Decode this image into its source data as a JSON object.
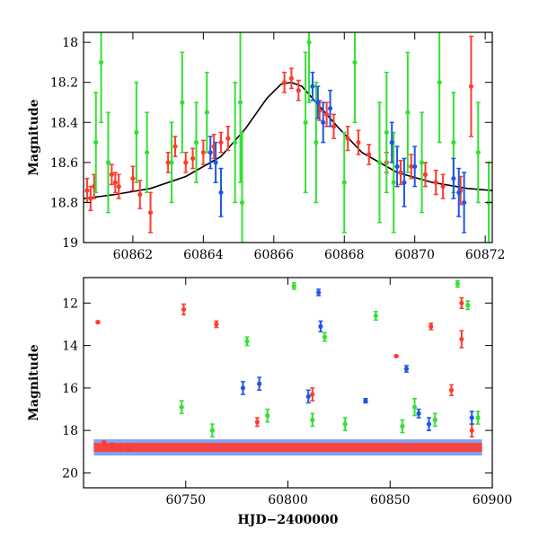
{
  "colors": {
    "red": "#ff3b2f",
    "green": "#33e033",
    "blue": "#1f56e6",
    "model": "#000000"
  },
  "chart_data": [
    {
      "type": "scatter",
      "title": "",
      "xlabel": "",
      "ylabel": "Magnitude",
      "xlim": [
        60860.6,
        60872.2
      ],
      "ylim": [
        19.0,
        17.95
      ],
      "y_inverted": true,
      "xticks": [
        60862,
        60864,
        60866,
        60868,
        60870,
        60872
      ],
      "xtick_labels": [
        "60862",
        "60864",
        "60866",
        "60868",
        "60870",
        "60872"
      ],
      "yticks": [
        18.0,
        18.2,
        18.4,
        18.6,
        18.8,
        19.0
      ],
      "ytick_labels": [
        "18",
        "18.2",
        "18.4",
        "18.6",
        "18.8",
        "19"
      ],
      "model_curve": {
        "color": "#000000",
        "x": [
          60860.6,
          60861.5,
          60862.5,
          60863.5,
          60864.5,
          60865.2,
          60865.8,
          60866.2,
          60866.5,
          60866.8,
          60867.2,
          60867.8,
          60868.5,
          60869.5,
          60870.5,
          60871.5,
          60872.2
        ],
        "y": [
          18.78,
          18.76,
          18.73,
          18.67,
          18.57,
          18.43,
          18.28,
          18.21,
          18.2,
          18.22,
          18.3,
          18.42,
          18.55,
          18.65,
          18.7,
          18.73,
          18.74
        ]
      },
      "series": [
        {
          "color": "#ff3b2f",
          "x": [
            60860.7,
            60860.8,
            60860.9,
            60861.4,
            60861.5,
            60861.6,
            60862.0,
            60862.2,
            60862.5,
            60863.0,
            60863.2,
            60863.5,
            60863.7,
            60864.0,
            60864.3,
            60864.5,
            60864.7,
            60866.3,
            60866.5,
            60866.7,
            60867.3,
            60867.5,
            60867.7,
            60868.1,
            60868.4,
            60868.7,
            60869.2,
            60869.6,
            60869.9,
            60870.3,
            60870.6,
            60870.8,
            60871.3,
            60871.6
          ],
          "y": [
            18.74,
            18.78,
            18.72,
            18.66,
            18.7,
            18.72,
            18.68,
            18.76,
            18.85,
            18.6,
            18.52,
            18.6,
            18.58,
            18.55,
            18.52,
            18.5,
            18.48,
            18.2,
            18.18,
            18.24,
            18.34,
            18.36,
            18.42,
            18.48,
            18.5,
            18.56,
            18.6,
            18.65,
            18.62,
            18.66,
            18.7,
            18.72,
            18.74,
            18.22
          ],
          "err": [
            0.06,
            0.06,
            0.06,
            0.05,
            0.05,
            0.06,
            0.06,
            0.07,
            0.1,
            0.05,
            0.05,
            0.05,
            0.05,
            0.06,
            0.06,
            0.05,
            0.06,
            0.05,
            0.05,
            0.05,
            0.05,
            0.06,
            0.06,
            0.06,
            0.06,
            0.05,
            0.05,
            0.06,
            0.06,
            0.06,
            0.06,
            0.06,
            0.07,
            0.25
          ]
        },
        {
          "color": "#33e033",
          "x": [
            60860.95,
            60861.1,
            60861.3,
            60862.1,
            60862.4,
            60863.1,
            60863.4,
            60863.8,
            60864.1,
            60864.9,
            60865.05,
            60865.1,
            60866.9,
            60867.0,
            60867.2,
            60868.0,
            60868.3,
            60869.0,
            60869.2,
            60869.4,
            60869.8,
            60870.2,
            60870.7,
            60871.1,
            60871.8,
            60872.1
          ],
          "y": [
            18.5,
            18.1,
            18.6,
            18.45,
            18.55,
            18.6,
            18.3,
            18.5,
            18.35,
            18.5,
            18.3,
            18.8,
            18.4,
            18.0,
            18.5,
            18.7,
            18.1,
            18.6,
            18.45,
            18.7,
            18.35,
            18.6,
            18.2,
            18.5,
            18.55,
            18.8
          ],
          "err": [
            0.25,
            0.3,
            0.25,
            0.25,
            0.2,
            0.2,
            0.25,
            0.2,
            0.2,
            0.3,
            0.4,
            0.35,
            0.35,
            0.3,
            0.3,
            0.25,
            0.3,
            0.3,
            0.3,
            0.25,
            0.3,
            0.25,
            0.3,
            0.25,
            0.25,
            0.2
          ]
        },
        {
          "color": "#1f56e6",
          "x": [
            60864.2,
            60864.35,
            60864.5,
            60867.1,
            60867.25,
            60867.4,
            60867.6,
            60869.35,
            60869.5,
            60869.7,
            60870.0,
            60871.1,
            60871.25,
            60871.4
          ],
          "y": [
            18.55,
            18.6,
            18.75,
            18.22,
            18.3,
            18.4,
            18.33,
            18.5,
            18.62,
            18.7,
            18.62,
            18.68,
            18.75,
            18.8
          ],
          "err": [
            0.08,
            0.1,
            0.12,
            0.07,
            0.08,
            0.1,
            0.09,
            0.1,
            0.1,
            0.12,
            0.1,
            0.1,
            0.12,
            0.15
          ]
        }
      ]
    },
    {
      "type": "scatter",
      "title": "",
      "xlabel": "HJD−2400000",
      "ylabel": "Magnitude",
      "xlim": [
        60700,
        60900
      ],
      "ylim": [
        20.7,
        10.8
      ],
      "y_inverted": true,
      "xticks": [
        60750,
        60800,
        60850,
        60900
      ],
      "xtick_labels": [
        "60750",
        "60800",
        "60850",
        "60900"
      ],
      "yticks": [
        12,
        14,
        16,
        18,
        20
      ],
      "ytick_labels": [
        "12",
        "14",
        "16",
        "18",
        "20"
      ],
      "baseline": {
        "color": "#ff3b2f",
        "x_range": [
          60705,
          60895
        ],
        "y": 18.8
      },
      "series": [
        {
          "color": "#ff3b2f",
          "x": [
            60707,
            60710,
            60714,
            60718,
            60722,
            60749,
            60765,
            60785,
            60812,
            60853,
            60870,
            60880,
            60885,
            60885,
            60890
          ],
          "y": [
            12.9,
            18.6,
            18.7,
            18.8,
            18.85,
            12.3,
            13.0,
            17.6,
            16.3,
            14.5,
            13.1,
            16.1,
            12.0,
            13.7,
            18.0
          ],
          "err": [
            0.05,
            0.1,
            0.1,
            0.1,
            0.1,
            0.25,
            0.15,
            0.2,
            0.3,
            0.05,
            0.15,
            0.25,
            0.25,
            0.4,
            0.3
          ]
        },
        {
          "color": "#33e033",
          "x": [
            60748,
            60763,
            60780,
            60790,
            60803,
            60812,
            60818,
            60828,
            60843,
            60856,
            60862,
            60872,
            60883,
            60888,
            60893
          ],
          "y": [
            16.9,
            18.0,
            13.8,
            17.3,
            11.2,
            17.5,
            13.6,
            17.7,
            12.6,
            17.8,
            16.9,
            17.5,
            11.1,
            12.1,
            17.4
          ],
          "err": [
            0.3,
            0.3,
            0.2,
            0.3,
            0.15,
            0.3,
            0.2,
            0.3,
            0.2,
            0.3,
            0.4,
            0.3,
            0.15,
            0.2,
            0.3
          ]
        },
        {
          "color": "#1f56e6",
          "x": [
            60778,
            60786,
            60810,
            60815,
            60816,
            60838,
            60858,
            60864,
            60869,
            60890
          ],
          "y": [
            16.0,
            15.8,
            16.4,
            11.5,
            13.1,
            16.6,
            15.1,
            17.2,
            17.7,
            17.4
          ],
          "err": [
            0.3,
            0.3,
            0.3,
            0.15,
            0.25,
            0.1,
            0.15,
            0.2,
            0.3,
            0.3
          ]
        }
      ]
    }
  ]
}
